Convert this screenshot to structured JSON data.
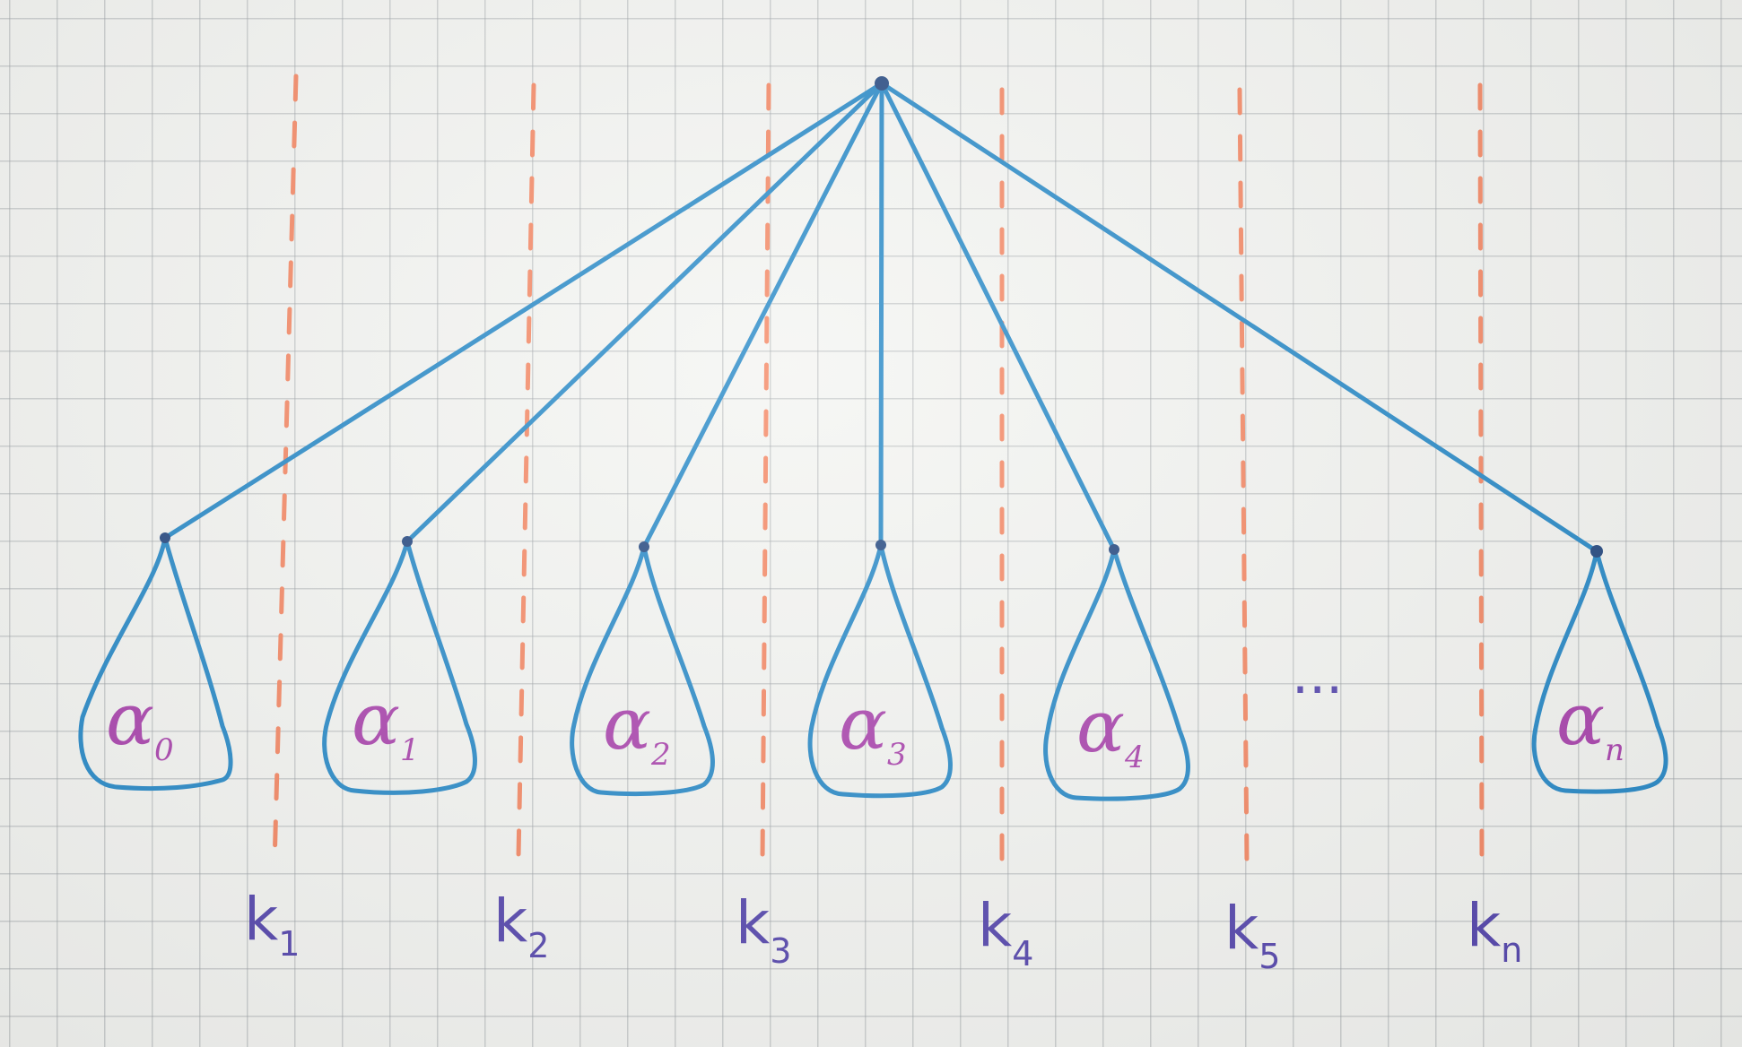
{
  "subtrees": [
    {
      "base": "α",
      "sub": "0"
    },
    {
      "base": "α",
      "sub": "1"
    },
    {
      "base": "α",
      "sub": "2"
    },
    {
      "base": "α",
      "sub": "3"
    },
    {
      "base": "α",
      "sub": "4"
    },
    {
      "base": "α",
      "sub": "n"
    }
  ],
  "keys": [
    {
      "base": "k",
      "sub": "1"
    },
    {
      "base": "k",
      "sub": "2"
    },
    {
      "base": "k",
      "sub": "3"
    },
    {
      "base": "k",
      "sub": "4"
    },
    {
      "base": "k",
      "sub": "5"
    },
    {
      "base": "k",
      "sub": "n"
    }
  ],
  "ellipsis": "···",
  "colors": {
    "edge": "#1a82c4",
    "divider": "#f4805a",
    "node": "#163c78",
    "alpha_label": "#a437a8",
    "key_label": "#4a3aa8",
    "grid_paper": "#f3f4f1"
  }
}
